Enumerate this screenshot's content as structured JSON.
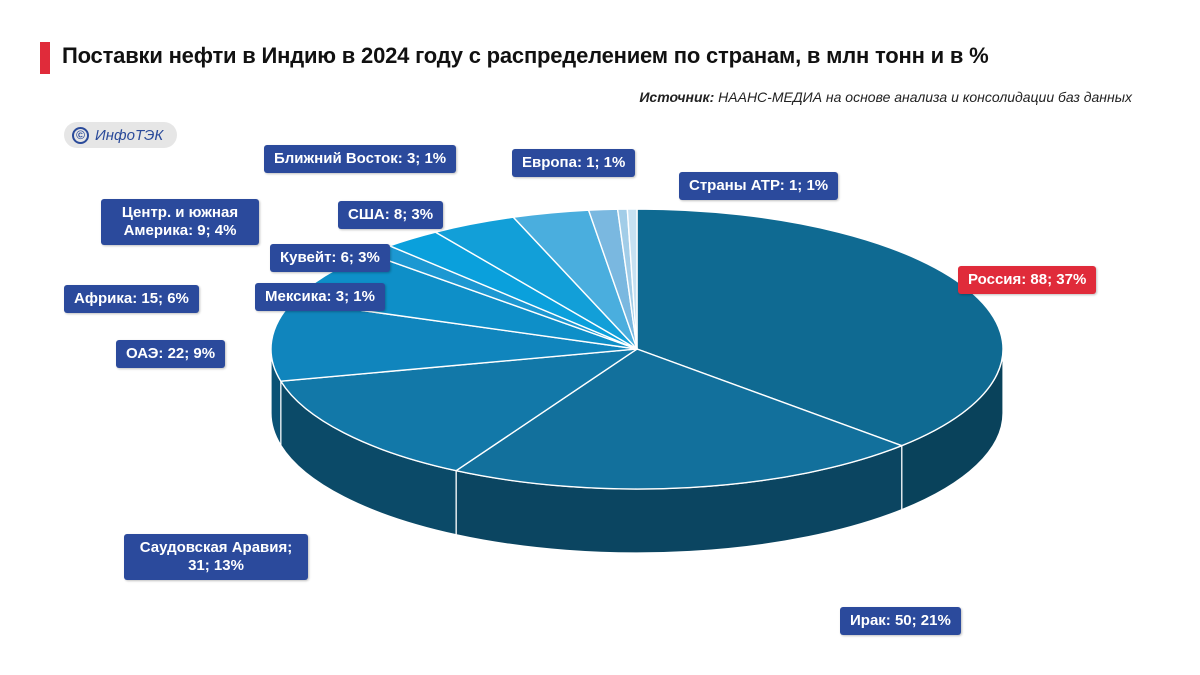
{
  "header": {
    "title": "Поставки нефти в Индию в 2024 году с распределением по странам, в млн тонн и в %",
    "source_prefix": "Источник:",
    "source_text": "НААНС-МЕДИА на основе анализа и консолидации баз данных",
    "logo_symbol": "©",
    "logo_text": "ИнфоТЭК"
  },
  "chart_data": {
    "type": "pie",
    "style": "3d",
    "unit": "млн тонн",
    "slices": [
      {
        "label": "Россия",
        "value": 88,
        "percent": 37,
        "text": "Россия: 88; 37%",
        "color": "#0f6a92",
        "highlight": true
      },
      {
        "label": "Ирак",
        "value": 50,
        "percent": 21,
        "text": "Ирак: 50; 21%",
        "color": "#12709c"
      },
      {
        "label": "Саудовская Аравия",
        "value": 31,
        "percent": 13,
        "text": "Саудовская Аравия; 31; 13%",
        "color": "#1278a8"
      },
      {
        "label": "ОАЭ",
        "value": 22,
        "percent": 9,
        "text": "ОАЭ: 22; 9%",
        "color": "#1085bd"
      },
      {
        "label": "Африка",
        "value": 15,
        "percent": 6,
        "text": "Африка: 15; 6%",
        "color": "#0e8fc8"
      },
      {
        "label": "Мексика",
        "value": 3,
        "percent": 1,
        "text": "Мексика: 3; 1%",
        "color": "#1c98d2"
      },
      {
        "label": "Кувейт",
        "value": 6,
        "percent": 3,
        "text": "Кувейт: 6; 3%",
        "color": "#0aa0dc"
      },
      {
        "label": "Центр. и южная Америка",
        "value": 9,
        "percent": 4,
        "text": "Центр. и южная Америка: 9; 4%",
        "color": "#129fd8"
      },
      {
        "label": "США",
        "value": 8,
        "percent": 3,
        "text": "США: 8; 3%",
        "color": "#4aaede"
      },
      {
        "label": "Ближний Восток",
        "value": 3,
        "percent": 1,
        "text": "Ближний Восток: 3; 1%",
        "color": "#7ab8e0"
      },
      {
        "label": "Европа",
        "value": 1,
        "percent": 1,
        "text": "Европа: 1; 1%",
        "color": "#a2cde8"
      },
      {
        "label": "Страны АТР",
        "value": 1,
        "percent": 1,
        "text": "Страны АТР: 1; 1%",
        "color": "#c7e1f2"
      }
    ]
  }
}
